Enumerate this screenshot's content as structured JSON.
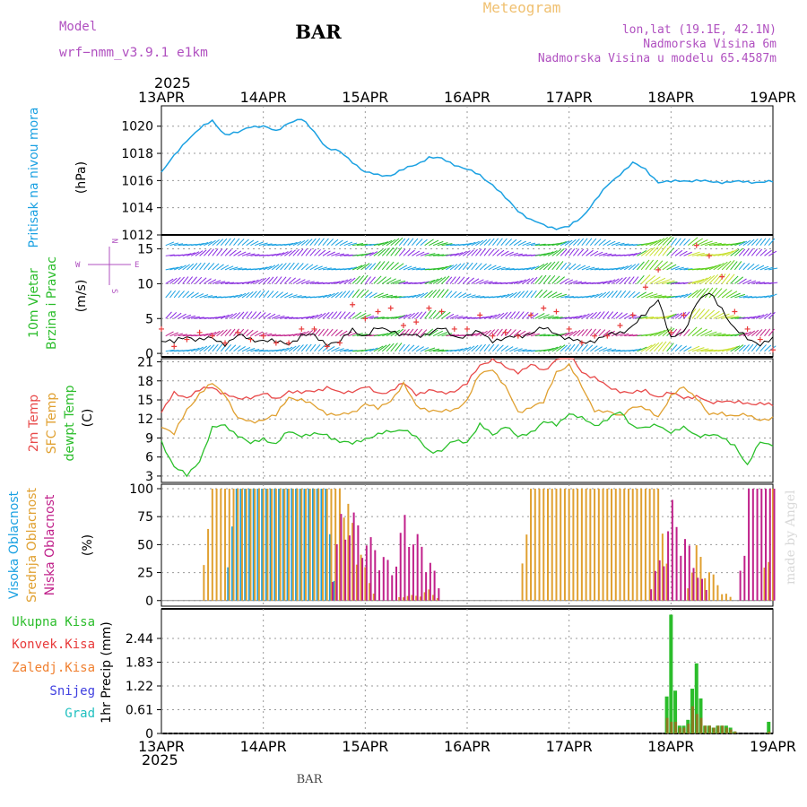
{
  "header": {
    "model_label": "Model",
    "model_name": "wrf−nmm_v3.9.1  e1km",
    "station": "BAR",
    "title": "Meteogram",
    "lonlat": "lon,lat (19.1E, 42.1N)",
    "altitude": "Nadmorska Visina 6m",
    "model_altitude": "Nadmorska Visina u modelu 65.4587m",
    "credit": "made by Angel",
    "footer_station": "BAR"
  },
  "colors": {
    "pressure": "#1ba1e2",
    "wind_label": "#2bbd2b",
    "wind_speed": "#000000",
    "wind_gust": "#e83a3a",
    "temp2m": "#e84a4a",
    "sfc_temp": "#e0a030",
    "dewpt": "#2bc02b",
    "cloud_high": "#1ba1e2",
    "cloud_mid": "#e0a030",
    "cloud_low": "#c0208a",
    "precip_total": "#2bbd2b",
    "precip_conv": "#e83a3a",
    "precip_frozen": "#f08030",
    "snow": "#4040e0",
    "graupel": "#20c0c0",
    "title": "#f0c070",
    "model_text": "#b050c0"
  },
  "chart_data": [
    {
      "type": "line",
      "panel": "pressure",
      "title": "Pritisak na nivou mora",
      "ylabel": "(hPa)",
      "ylim": [
        1012,
        1021.5
      ],
      "yticks": [
        "1012",
        "1014",
        "1016",
        "1018",
        "1020"
      ],
      "x_top_year": "2025",
      "x_bottom_year": "2025",
      "xticks": [
        "13APR",
        "14APR",
        "15APR",
        "16APR",
        "17APR",
        "18APR",
        "19APR"
      ],
      "x_hours": [
        0,
        3,
        6,
        9,
        12,
        15,
        18,
        21,
        24,
        27,
        30,
        33,
        36,
        39,
        42,
        45,
        48,
        51,
        54,
        57,
        60,
        63,
        66,
        69,
        72,
        75,
        78,
        81,
        84,
        87,
        90,
        93,
        96,
        99,
        102,
        105,
        108,
        111,
        114,
        117,
        120,
        123,
        126,
        129,
        132,
        135,
        138,
        141,
        144
      ],
      "series": [
        {
          "name": "Pritisak na nivou mora",
          "values": [
            1016.6,
            1017.8,
            1019.0,
            1019.8,
            1020.4,
            1019.4,
            1019.5,
            1020.0,
            1020.0,
            1019.6,
            1020.3,
            1020.5,
            1019.6,
            1018.4,
            1018.1,
            1017.4,
            1016.6,
            1016.4,
            1016.4,
            1016.8,
            1017.2,
            1017.7,
            1017.6,
            1017.2,
            1016.8,
            1016.4,
            1015.7,
            1014.7,
            1013.8,
            1013.1,
            1012.7,
            1012.5,
            1012.6,
            1013.3,
            1014.5,
            1015.6,
            1016.5,
            1017.3,
            1016.8,
            1015.9,
            1015.9,
            1016.0,
            1016.0,
            1015.9,
            1015.9,
            1015.9,
            1015.9,
            1015.9,
            1015.9
          ]
        }
      ]
    },
    {
      "type": "line",
      "panel": "wind",
      "title": "10m Vjetar Brzina i Pravac",
      "ylabel": "(m/s)",
      "ylim": [
        -0.5,
        17
      ],
      "yticks": [
        "0",
        "5",
        "10",
        "15"
      ],
      "compass": {
        "north": "N",
        "south": "S",
        "east": "E",
        "west": "W"
      },
      "x_hours": [
        0,
        3,
        6,
        9,
        12,
        15,
        18,
        21,
        24,
        27,
        30,
        33,
        36,
        39,
        42,
        45,
        48,
        51,
        54,
        57,
        60,
        63,
        66,
        69,
        72,
        75,
        78,
        81,
        84,
        87,
        90,
        93,
        96,
        99,
        102,
        105,
        108,
        111,
        114,
        117,
        120,
        123,
        126,
        129,
        132,
        135,
        138,
        141,
        144
      ],
      "series": [
        {
          "name": "speed",
          "values": [
            2.0,
            1.5,
            2.5,
            2.0,
            2.0,
            1.5,
            2.5,
            2.0,
            2.0,
            1.5,
            1.5,
            2.5,
            2.5,
            1.5,
            1.5,
            3.5,
            2.5,
            3.5,
            3.5,
            2.5,
            2.5,
            3.0,
            3.5,
            2.5,
            2.5,
            3.0,
            2.0,
            2.0,
            2.5,
            3.0,
            3.5,
            3.0,
            2.0,
            1.5,
            2.0,
            2.5,
            3.0,
            4.0,
            5.5,
            8.0,
            2.0,
            3.0,
            7.5,
            8.5,
            6.5,
            3.5,
            2.0,
            1.5,
            2.0
          ]
        },
        {
          "name": "gust",
          "values": [
            3.5,
            1.0,
            2.0,
            3.0,
            2.5,
            1.5,
            3.0,
            2.0,
            2.5,
            1.5,
            1.5,
            3.5,
            3.5,
            1.0,
            1.5,
            7.0,
            5.0,
            6.0,
            6.5,
            4.0,
            4.5,
            6.5,
            6.0,
            3.5,
            3.5,
            5.5,
            2.5,
            3.0,
            2.5,
            5.5,
            6.5,
            6.0,
            3.5,
            1.5,
            2.5,
            2.5,
            4.0,
            5.5,
            9.5,
            12.0,
            3.0,
            5.5,
            15.5,
            14.0,
            11.0,
            6.0,
            3.5,
            2.0,
            0.5
          ]
        }
      ]
    },
    {
      "type": "line",
      "panel": "temperature",
      "title": "2m Temp / SFC Temp / dewpt Temp",
      "ylabel": "(C)",
      "ylim": [
        2,
        21.5
      ],
      "yticks": [
        "3",
        "6",
        "9",
        "12",
        "15",
        "18",
        "21"
      ],
      "x_hours": [
        0,
        3,
        6,
        9,
        12,
        15,
        18,
        21,
        24,
        27,
        30,
        33,
        36,
        39,
        42,
        45,
        48,
        51,
        54,
        57,
        60,
        63,
        66,
        69,
        72,
        75,
        78,
        81,
        84,
        87,
        90,
        93,
        96,
        99,
        102,
        105,
        108,
        111,
        114,
        117,
        120,
        123,
        126,
        129,
        132,
        135,
        138,
        141,
        144
      ],
      "series": [
        {
          "name": "2m Temp",
          "values": [
            13.0,
            16.0,
            15.5,
            16.5,
            17.0,
            16.0,
            15.0,
            15.5,
            16.0,
            15.0,
            16.5,
            16.0,
            16.5,
            17.0,
            16.0,
            16.5,
            17.0,
            16.0,
            16.5,
            17.5,
            16.0,
            16.5,
            16.0,
            16.5,
            17.5,
            20.5,
            21.5,
            20.0,
            19.5,
            20.5,
            19.5,
            21.5,
            22.0,
            19.5,
            18.5,
            17.0,
            16.5,
            16.0,
            16.5,
            15.5,
            16.0,
            15.5,
            15.5,
            14.5,
            15.0,
            14.5,
            14.5,
            14.5,
            14.0
          ]
        },
        {
          "name": "SFC Temp",
          "values": [
            11.0,
            9.5,
            13.5,
            16.0,
            17.5,
            16.0,
            12.0,
            11.5,
            12.0,
            12.5,
            15.5,
            15.0,
            14.0,
            13.0,
            12.5,
            13.0,
            14.5,
            13.5,
            15.0,
            17.5,
            14.0,
            13.5,
            13.0,
            13.5,
            15.0,
            19.0,
            20.0,
            17.0,
            13.0,
            14.0,
            14.5,
            19.5,
            20.5,
            17.0,
            13.5,
            13.0,
            12.5,
            14.0,
            13.5,
            12.5,
            15.5,
            17.0,
            15.5,
            12.5,
            13.0,
            12.5,
            12.5,
            12.0,
            12.0
          ]
        },
        {
          "name": "dewpt Temp",
          "values": [
            8.5,
            4.5,
            3.0,
            5.5,
            10.5,
            11.0,
            9.5,
            8.0,
            9.0,
            8.0,
            10.0,
            9.5,
            9.5,
            9.5,
            8.5,
            8.0,
            9.0,
            9.5,
            10.0,
            10.5,
            9.0,
            7.0,
            7.0,
            8.5,
            8.5,
            11.0,
            9.5,
            11.0,
            9.0,
            10.0,
            11.5,
            11.0,
            13.0,
            12.0,
            11.0,
            12.0,
            13.0,
            11.0,
            10.5,
            11.0,
            10.0,
            10.5,
            9.5,
            9.5,
            9.0,
            8.0,
            4.5,
            8.5,
            8.0
          ]
        }
      ]
    },
    {
      "type": "bar",
      "panel": "cloud",
      "title": "Visoka Oblacnost / Srednja Oblacnost / Niska Oblacnost",
      "ylabel": "(%)",
      "ylim": [
        -5,
        104
      ],
      "yticks": [
        "0",
        "25",
        "50",
        "75",
        "100"
      ],
      "x_hours": [
        0,
        3,
        6,
        9,
        12,
        15,
        18,
        21,
        24,
        27,
        30,
        33,
        36,
        39,
        42,
        45,
        48,
        51,
        54,
        57,
        60,
        63,
        66,
        69,
        72,
        75,
        78,
        81,
        84,
        87,
        90,
        93,
        96,
        99,
        102,
        105,
        108,
        111,
        114,
        117,
        120,
        123,
        126,
        129,
        132,
        135,
        138,
        141,
        144
      ],
      "series": [
        {
          "name": "Visoka Oblacnost",
          "values": [
            0,
            0,
            0,
            0,
            0,
            0,
            100,
            100,
            100,
            100,
            100,
            100,
            100,
            100,
            0,
            0,
            0,
            0,
            0,
            0,
            0,
            0,
            0,
            0,
            0,
            0,
            0,
            0,
            0,
            0,
            0,
            0,
            0,
            0,
            0,
            0,
            0,
            0,
            0,
            0,
            0,
            0,
            0,
            0,
            0,
            0,
            0,
            0,
            0
          ]
        },
        {
          "name": "Srednja Oblacnost",
          "values": [
            0,
            0,
            0,
            0,
            100,
            100,
            100,
            100,
            100,
            100,
            100,
            100,
            100,
            100,
            100,
            80,
            30,
            0,
            0,
            5,
            5,
            10,
            0,
            0,
            0,
            0,
            0,
            0,
            0,
            100,
            100,
            100,
            100,
            100,
            100,
            100,
            100,
            100,
            100,
            100,
            0,
            0,
            50,
            30,
            10,
            0,
            0,
            0,
            100
          ]
        },
        {
          "name": "Niska Oblacnost",
          "values": [
            0,
            0,
            0,
            0,
            0,
            0,
            0,
            0,
            0,
            0,
            0,
            0,
            0,
            0,
            80,
            80,
            60,
            50,
            30,
            80,
            60,
            40,
            0,
            0,
            0,
            0,
            0,
            0,
            0,
            0,
            0,
            0,
            0,
            0,
            0,
            0,
            0,
            0,
            0,
            40,
            90,
            60,
            30,
            0,
            0,
            0,
            100,
            100,
            100
          ]
        }
      ]
    },
    {
      "type": "bar",
      "panel": "precip",
      "title": "1hr Precip",
      "ylabel": "(mm)",
      "legend": [
        "Ukupna Kisa",
        "Konvek.Kisa",
        "Zaledj.Kisa",
        "Snijeg",
        "Grad"
      ],
      "ylim": [
        0,
        3.2
      ],
      "yticks": [
        "0",
        "0.61",
        "1.22",
        "1.83",
        "2.44"
      ],
      "x_hours": [
        119,
        120,
        121,
        122,
        123,
        124,
        125,
        126,
        127,
        128,
        129,
        130,
        131,
        132,
        133,
        134,
        135,
        143
      ],
      "series": [
        {
          "name": "Ukupna Kisa",
          "values": [
            0.95,
            3.05,
            1.1,
            0.2,
            0.2,
            0.35,
            1.15,
            1.8,
            0.9,
            0.2,
            0.2,
            0.15,
            0.2,
            0.2,
            0.2,
            0.15,
            0.05,
            0.3
          ]
        },
        {
          "name": "Konvek.Kisa",
          "values": [
            0.4,
            0.3,
            0.3,
            0.15,
            0.15,
            0.25,
            0.7,
            0.5,
            0.4,
            0.2,
            0.2,
            0.15,
            0.2,
            0.2,
            0.15,
            0.1,
            0.05,
            0.05
          ]
        }
      ]
    }
  ]
}
